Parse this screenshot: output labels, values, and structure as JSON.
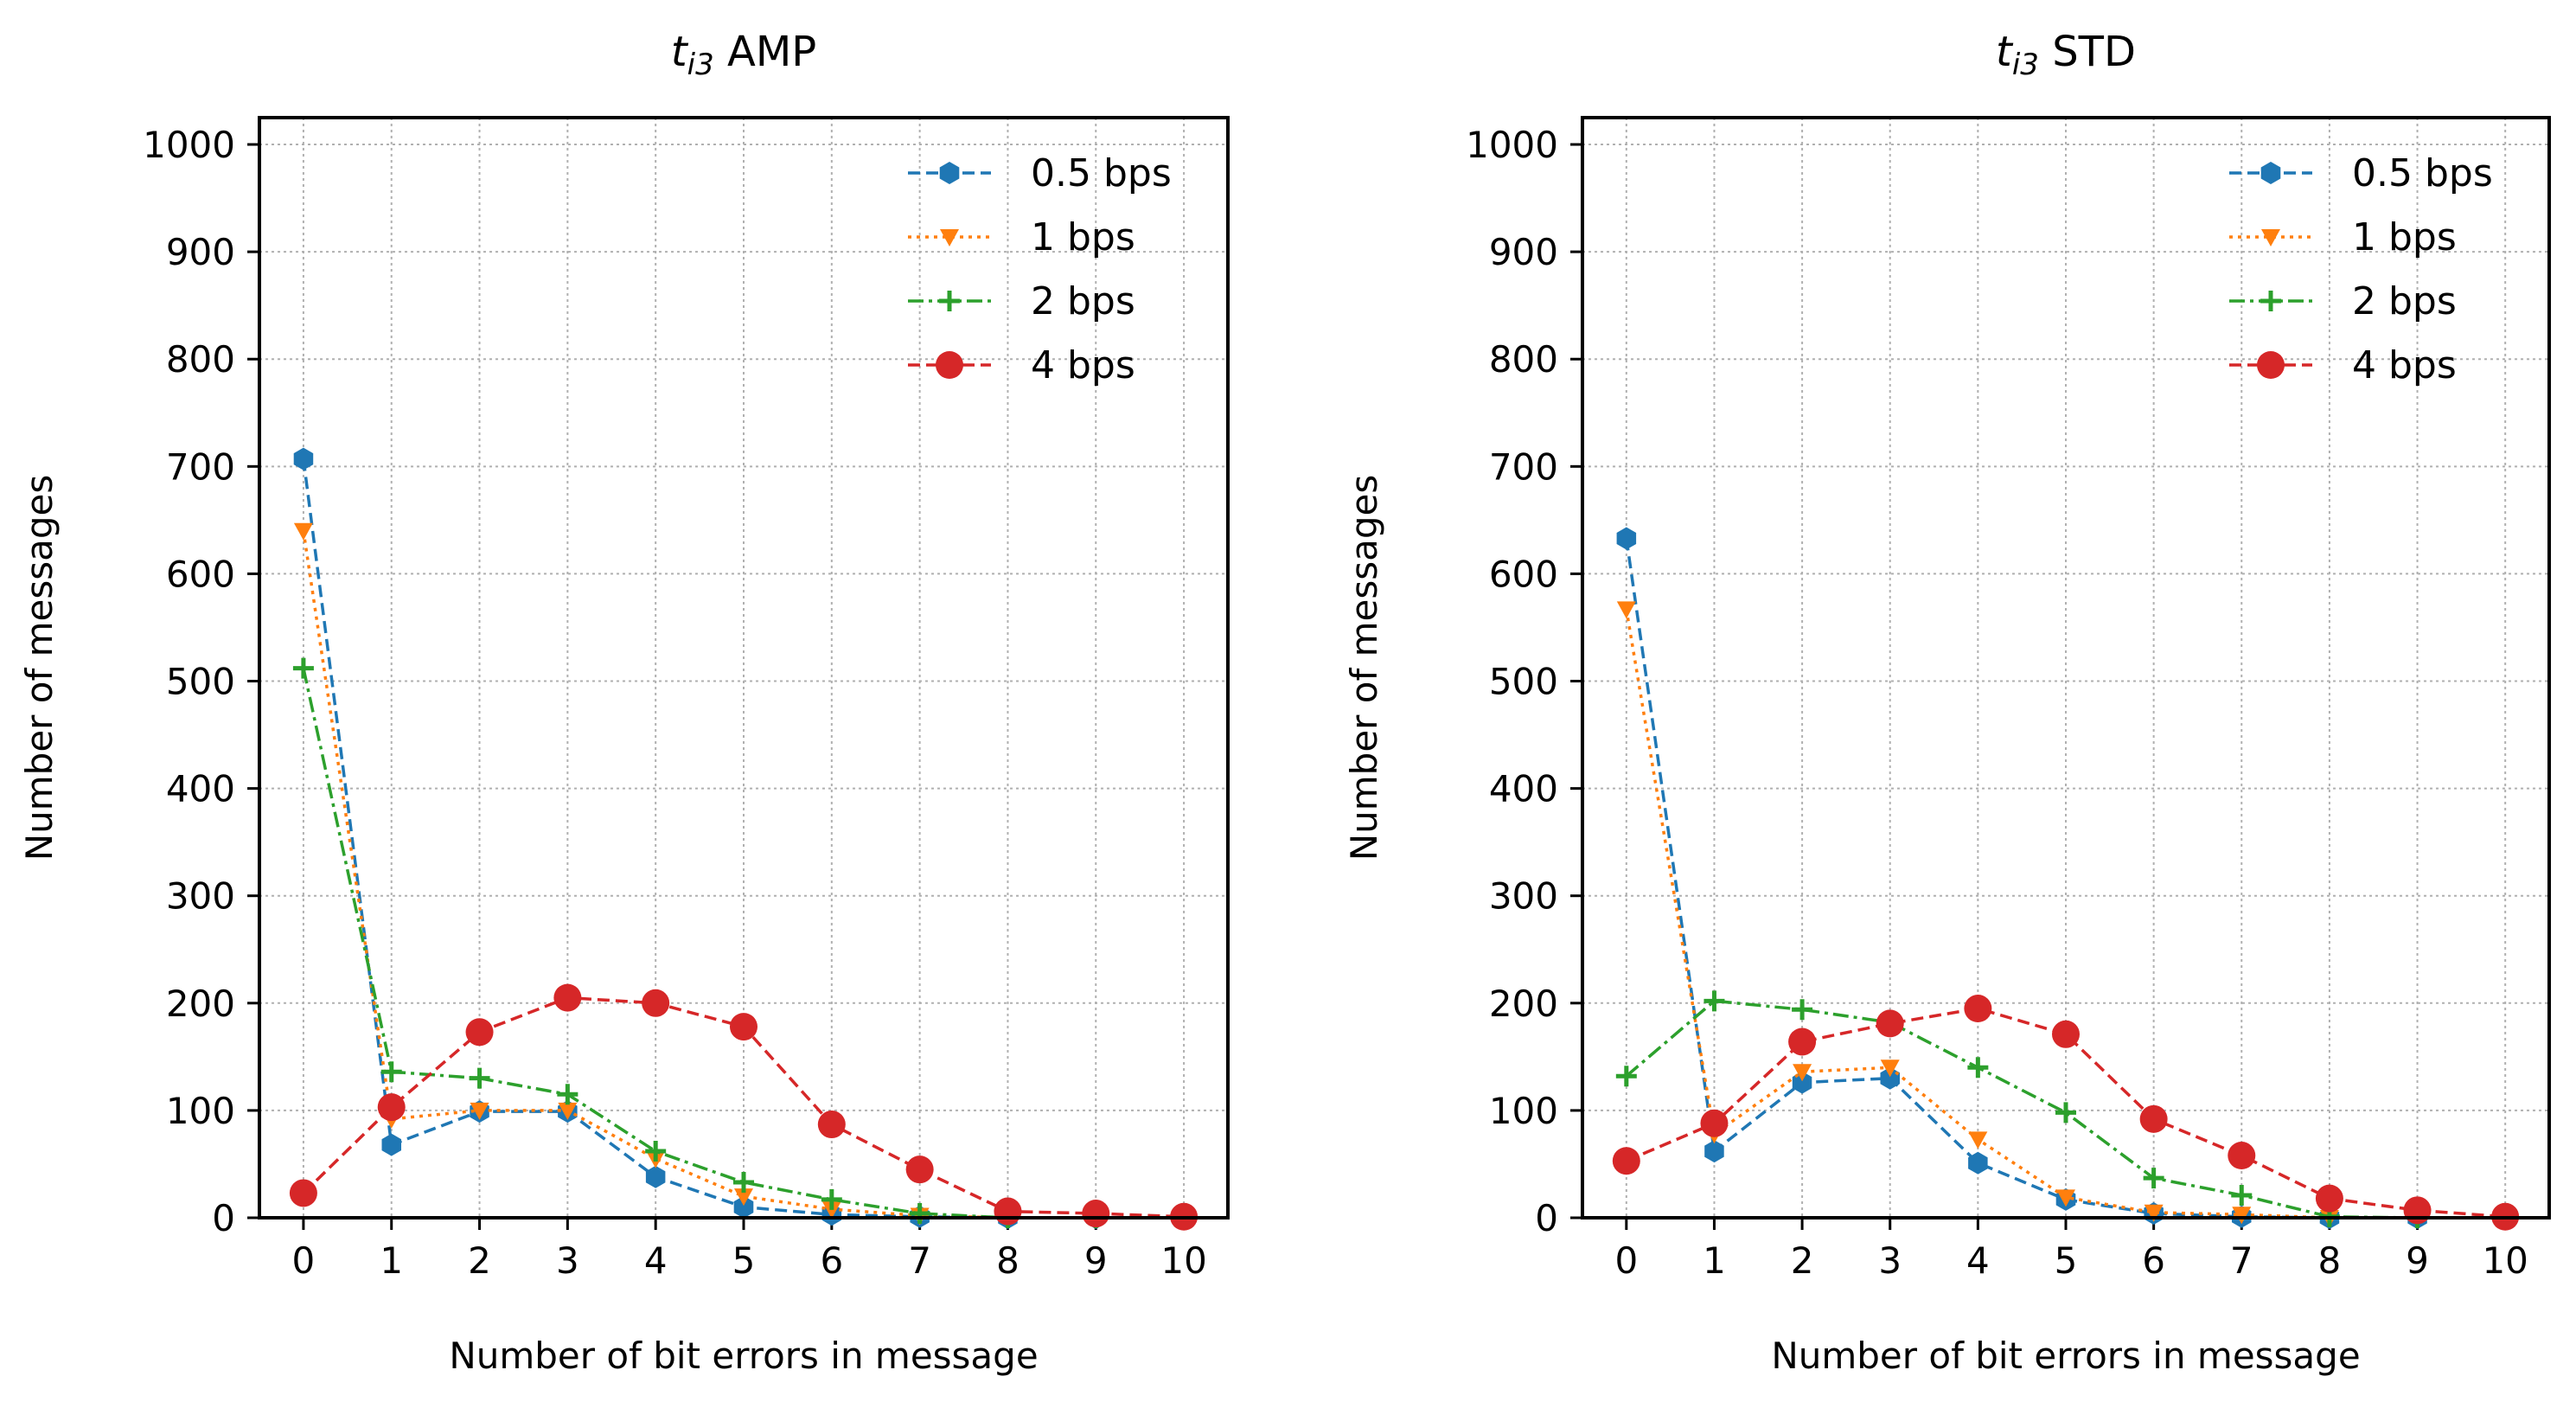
{
  "chart_data": [
    {
      "type": "line",
      "title_main": "t",
      "title_sub": "i3",
      "title_rest": " AMP",
      "xlabel": "Number of bit errors in message",
      "ylabel": "Number of messages",
      "xlim": [
        -0.5,
        10.5
      ],
      "ylim": [
        0,
        1025
      ],
      "x": [
        0,
        1,
        2,
        3,
        4,
        5,
        6,
        7,
        8,
        9,
        10
      ],
      "x_ticks": [
        "0",
        "1",
        "2",
        "3",
        "4",
        "5",
        "6",
        "7",
        "8",
        "9",
        "10"
      ],
      "y_ticks": [
        "0",
        "100",
        "200",
        "300",
        "400",
        "500",
        "600",
        "700",
        "800",
        "900",
        "1000"
      ],
      "grid": true,
      "legend_position": "upper-right",
      "series": [
        {
          "name": "0.5 bps",
          "color": "#1f77b4",
          "marker": "hexagon",
          "linestyle": "dashed",
          "values": [
            707,
            68,
            99,
            99,
            38,
            10,
            3,
            1,
            0,
            0,
            0
          ]
        },
        {
          "name": "1 bps",
          "color": "#ff7f0e",
          "marker": "triangle-down",
          "linestyle": "dotted",
          "values": [
            640,
            92,
            100,
            100,
            55,
            20,
            8,
            2,
            0,
            0,
            0
          ]
        },
        {
          "name": "2 bps",
          "color": "#2ca02c",
          "marker": "plus",
          "linestyle": "dashdot",
          "values": [
            512,
            136,
            130,
            115,
            62,
            33,
            17,
            4,
            0,
            0,
            0
          ]
        },
        {
          "name": "4 bps",
          "color": "#d62728",
          "marker": "circle",
          "linestyle": "dashed",
          "values": [
            23,
            103,
            173,
            205,
            200,
            178,
            87,
            45,
            6,
            4,
            1
          ]
        }
      ]
    },
    {
      "type": "line",
      "title_main": "t",
      "title_sub": "i3",
      "title_rest": " STD",
      "xlabel": "Number of bit errors in message",
      "ylabel": "Number of messages",
      "xlim": [
        -0.5,
        10.5
      ],
      "ylim": [
        0,
        1025
      ],
      "x": [
        0,
        1,
        2,
        3,
        4,
        5,
        6,
        7,
        8,
        9,
        10
      ],
      "x_ticks": [
        "0",
        "1",
        "2",
        "3",
        "4",
        "5",
        "6",
        "7",
        "8",
        "9",
        "10"
      ],
      "y_ticks": [
        "0",
        "100",
        "200",
        "300",
        "400",
        "500",
        "600",
        "700",
        "800",
        "900",
        "1000"
      ],
      "grid": true,
      "legend_position": "upper-right",
      "series": [
        {
          "name": "0.5 bps",
          "color": "#1f77b4",
          "marker": "hexagon",
          "linestyle": "dashed",
          "values": [
            633,
            62,
            126,
            130,
            51,
            17,
            4,
            1,
            0,
            0,
            0
          ]
        },
        {
          "name": "1 bps",
          "color": "#ff7f0e",
          "marker": "triangle-down",
          "linestyle": "dotted",
          "values": [
            567,
            78,
            136,
            140,
            73,
            19,
            5,
            3,
            0,
            0,
            0
          ]
        },
        {
          "name": "2 bps",
          "color": "#2ca02c",
          "marker": "plus",
          "linestyle": "dashdot",
          "values": [
            132,
            202,
            194,
            182,
            140,
            98,
            37,
            21,
            1,
            0,
            0
          ]
        },
        {
          "name": "4 bps",
          "color": "#d62728",
          "marker": "circle",
          "linestyle": "dashed",
          "values": [
            53,
            88,
            164,
            181,
            195,
            171,
            92,
            58,
            18,
            7,
            1
          ]
        }
      ]
    }
  ]
}
